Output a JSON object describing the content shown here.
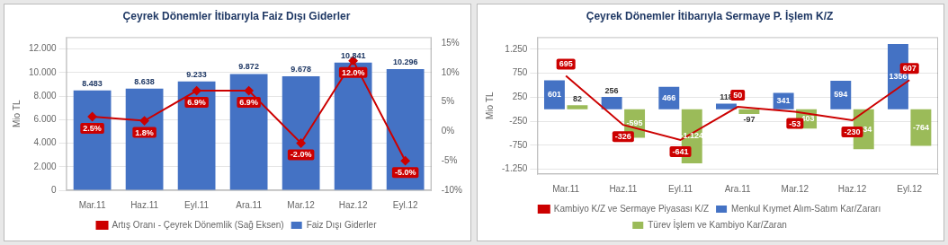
{
  "chart_data": [
    {
      "type": "bar",
      "title": "Çeyrek Dönemler İtibarıyla Faiz Dışı Giderler",
      "categories": [
        "Mar.11",
        "Haz.11",
        "Eyl.11",
        "Ara.11",
        "Mar.12",
        "Haz.12",
        "Eyl.12"
      ],
      "series": [
        {
          "name": "Faiz Dışı Giderler",
          "type": "bar",
          "color": "#4472C4",
          "values": [
            8483,
            8638,
            9233,
            9872,
            9678,
            10841,
            10296
          ],
          "value_labels": [
            "8.483",
            "8.638",
            "9.233",
            "9.872",
            "9.678",
            "10.841",
            "10.296"
          ]
        },
        {
          "name": "Artış Oranı - Çeyrek Dönemlik (Sağ Eksen)",
          "type": "line",
          "axis": "y2",
          "color": "#CC0000",
          "marker": "diamond",
          "line_style": "solid",
          "values": [
            2.5,
            1.8,
            6.9,
            6.9,
            -2.0,
            12.0,
            -5.0
          ],
          "value_labels": [
            "2.5%",
            "1.8%",
            "6.9%",
            "6.9%",
            "-2.0%",
            "12.0%",
            "-5.0%"
          ]
        }
      ],
      "ylabel": "Mio TL",
      "ylim": [
        0,
        13000
      ],
      "yticks": [
        0,
        {
          "value": 2000,
          "label": "2.000"
        },
        {
          "value": 4000,
          "label": "4.000"
        },
        {
          "value": 6000,
          "label": "6.000"
        },
        {
          "value": 8000,
          "label": "8.000"
        },
        {
          "value": 10000,
          "label": "10.000"
        },
        {
          "value": 12000,
          "label": "12.000"
        }
      ],
      "y2lim": [
        -10,
        16
      ],
      "y2ticks": [
        {
          "value": -10,
          "label": "-10%"
        },
        {
          "value": -5,
          "label": "-5%"
        },
        {
          "value": 0,
          "label": "0%"
        },
        {
          "value": 5,
          "label": "5%"
        },
        {
          "value": 10,
          "label": "10%"
        },
        {
          "value": 15,
          "label": "15%"
        }
      ],
      "grid": true,
      "legend": "bottom",
      "data_labels": true
    },
    {
      "type": "bar",
      "title": "Çeyrek Dönemler İtibarıyla Sermaye P. İşlem K/Z",
      "categories": [
        "Mar.11",
        "Haz.11",
        "Eyl.11",
        "Ara.11",
        "Mar.12",
        "Haz.12",
        "Eyl.12"
      ],
      "series": [
        {
          "name": "Menkul Kıymet Alım-Satım Kar/Zararı",
          "type": "bar",
          "color": "#4472C4",
          "values": [
            601,
            256,
            466,
            118,
            341,
            594,
            1356
          ]
        },
        {
          "name": "Türev İşlem ve Kambiyo Kar/Zaran",
          "type": "bar",
          "color": "#9BBB59",
          "values": [
            82,
            -595,
            -1124,
            -97,
            -403,
            -834,
            -764
          ],
          "value_labels": [
            "82",
            "-595",
            "-1.124",
            "-97",
            "-403",
            "-834",
            "-764"
          ]
        },
        {
          "name": "Kambiyo K/Z ve Sermaye Piyasası K/Z",
          "type": "line",
          "color": "#CC0000",
          "marker": "none",
          "line_style": "solid",
          "values": [
            695,
            -326,
            -641,
            50,
            -53,
            -230,
            607
          ]
        }
      ],
      "ylabel": "Mio TL",
      "ylim": [
        -1350,
        1500
      ],
      "yticks": [
        {
          "value": -1250,
          "label": "-1.250"
        },
        -750,
        -250,
        250,
        750,
        {
          "value": 1250,
          "label": "1.250"
        }
      ],
      "grid": true,
      "legend": "bottom",
      "data_labels": true
    }
  ]
}
